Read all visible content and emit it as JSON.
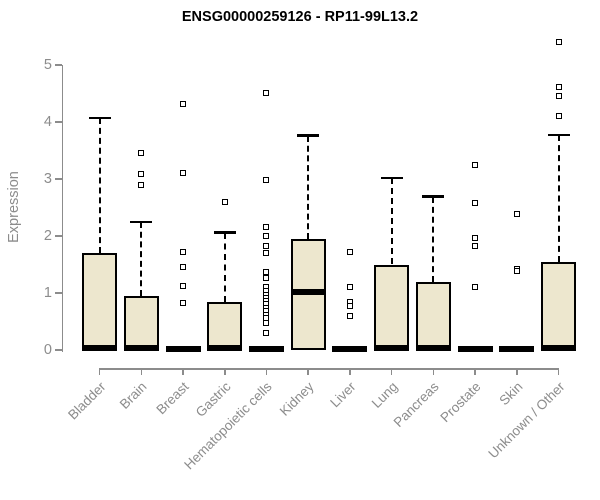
{
  "chart_data": {
    "type": "boxplot",
    "title": "ENSG00000259126 - RP11-99L13.2",
    "ylabel": "Expression",
    "xlabel": "",
    "ylim": [
      0,
      5.45
    ],
    "yticks": [
      0,
      1,
      2,
      3,
      4,
      5
    ],
    "grid": false,
    "legend": null,
    "colors": {
      "box_fill": "#EDE7CE",
      "box_border": "#000000",
      "element": "#000000",
      "axis": "#8C8C8C",
      "title": "#000000",
      "background": "#FFFFFF"
    },
    "categories": [
      "Bladder",
      "Brain",
      "Breast",
      "Gastric",
      "Hematopoietic cells",
      "Kidney",
      "Liver",
      "Lung",
      "Pancreas",
      "Prostate",
      "Skin",
      "Unknown / Other"
    ],
    "series": [
      {
        "category": "Bladder",
        "q1": 0,
        "median": 0.03,
        "q3": 1.7,
        "whisker_low": 0,
        "whisker_high": 4.07,
        "outliers": []
      },
      {
        "category": "Brain",
        "q1": 0,
        "median": 0.03,
        "q3": 0.95,
        "whisker_low": 0,
        "whisker_high": 2.25,
        "outliers": [
          3.46,
          3.09,
          2.89
        ]
      },
      {
        "category": "Breast",
        "q1": 0,
        "median": 0.02,
        "q3": 0.03,
        "whisker_low": 0,
        "whisker_high": 0.03,
        "outliers": [
          4.32,
          3.1,
          1.72,
          1.46,
          1.12,
          0.83
        ]
      },
      {
        "category": "Gastric",
        "q1": 0,
        "median": 0.03,
        "q3": 0.85,
        "whisker_low": 0,
        "whisker_high": 2.06,
        "outliers": [
          2.6
        ]
      },
      {
        "category": "Hematopoietic cells",
        "q1": 0,
        "median": 0.02,
        "q3": 0.03,
        "whisker_low": 0,
        "whisker_high": 0.03,
        "outliers": [
          4.51,
          2.98,
          2.15,
          2.0,
          1.82,
          1.7,
          1.36,
          1.27,
          1.1,
          1.03,
          0.97,
          0.92,
          0.86,
          0.8,
          0.74,
          0.68,
          0.62,
          0.56,
          0.47,
          0.3
        ]
      },
      {
        "category": "Kidney",
        "q1": 0,
        "median": 1.02,
        "q3": 1.95,
        "whisker_low": 0,
        "whisker_high": 3.76,
        "outliers": []
      },
      {
        "category": "Liver",
        "q1": 0,
        "median": 0.02,
        "q3": 0.03,
        "whisker_low": 0,
        "whisker_high": 0.03,
        "outliers": [
          1.72,
          1.1,
          0.85,
          0.78,
          0.6
        ]
      },
      {
        "category": "Lung",
        "q1": 0,
        "median": 0.03,
        "q3": 1.5,
        "whisker_low": 0,
        "whisker_high": 3.02,
        "outliers": []
      },
      {
        "category": "Pancreas",
        "q1": 0,
        "median": 0.03,
        "q3": 1.2,
        "whisker_low": 0,
        "whisker_high": 2.69,
        "outliers": []
      },
      {
        "category": "Prostate",
        "q1": 0,
        "median": 0.02,
        "q3": 0.03,
        "whisker_low": 0,
        "whisker_high": 0.03,
        "outliers": [
          3.25,
          2.58,
          1.96,
          1.83,
          1.1
        ]
      },
      {
        "category": "Skin",
        "q1": 0,
        "median": 0.02,
        "q3": 0.03,
        "whisker_low": 0,
        "whisker_high": 0.03,
        "outliers": [
          2.38,
          1.42,
          1.38
        ]
      },
      {
        "category": "Unknown / Other",
        "q1": 0,
        "median": 0.03,
        "q3": 1.55,
        "whisker_low": 0,
        "whisker_high": 3.77,
        "outliers": [
          5.4,
          4.62,
          4.45,
          4.1
        ]
      }
    ]
  }
}
